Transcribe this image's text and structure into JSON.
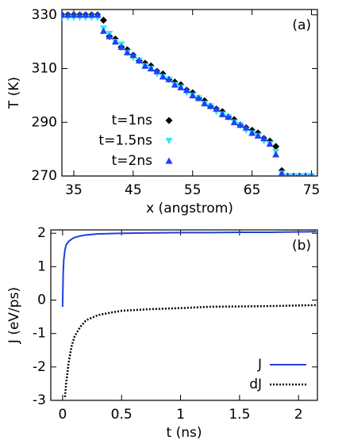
{
  "chart_data": [
    {
      "type": "scatter",
      "annotation": "(a)",
      "xlabel": "x (angstrom)",
      "ylabel": "T (K)",
      "x": [
        33,
        34,
        35,
        36,
        37,
        38,
        39,
        40,
        41,
        42,
        43,
        44,
        45,
        46,
        47,
        48,
        49,
        50,
        51,
        52,
        53,
        54,
        55,
        56,
        57,
        58,
        59,
        60,
        61,
        62,
        63,
        64,
        65,
        66,
        67,
        68,
        69,
        70,
        71,
        72,
        73,
        74,
        75
      ],
      "series": [
        {
          "name": "t=1ns",
          "color": "#000000",
          "marker": "diamond",
          "values": [
            330,
            330,
            330,
            330,
            330,
            330,
            330,
            328,
            322,
            321,
            318,
            317,
            315,
            313,
            312,
            311,
            309,
            308,
            306,
            305,
            304,
            302,
            301,
            299,
            298,
            296,
            295,
            294,
            292,
            291,
            289,
            288,
            287,
            286,
            284,
            283,
            281,
            272,
            270,
            270,
            270,
            270,
            270
          ]
        },
        {
          "name": "t=1.5ns",
          "color": "#33e6f0",
          "marker": "triangle-down",
          "values": [
            329,
            329,
            329,
            329,
            329,
            329,
            329,
            325,
            323,
            320,
            319,
            316,
            314,
            313,
            311,
            310,
            308,
            307,
            306,
            304,
            303,
            301,
            300,
            299,
            297,
            296,
            294,
            293,
            292,
            290,
            289,
            287,
            286,
            285,
            283,
            282,
            279,
            271,
            270,
            270,
            270,
            270,
            270
          ]
        },
        {
          "name": "t=2ns",
          "color": "#1f3fff",
          "marker": "triangle-up",
          "values": [
            330,
            330,
            330,
            330,
            330,
            330,
            330,
            324,
            322,
            320,
            318,
            316,
            315,
            313,
            311,
            310,
            309,
            307,
            306,
            304,
            303,
            302,
            300,
            299,
            297,
            296,
            295,
            293,
            292,
            290,
            289,
            288,
            286,
            285,
            284,
            282,
            278,
            271,
            270,
            270,
            270,
            270,
            270
          ]
        }
      ],
      "xlim": [
        33,
        76
      ],
      "ylim": [
        270,
        332
      ],
      "xticks": [
        35,
        45,
        55,
        65,
        75
      ],
      "yticks": [
        270,
        290,
        310,
        330
      ],
      "legend": "lower left"
    },
    {
      "type": "line",
      "annotation": "(b)",
      "xlabel": "t (ns)",
      "ylabel": "J (eV/ps)",
      "x": [
        0,
        0.005,
        0.01,
        0.02,
        0.03,
        0.05,
        0.075,
        0.1,
        0.15,
        0.2,
        0.3,
        0.4,
        0.5,
        0.75,
        1,
        1.25,
        1.5,
        1.75,
        2,
        2.15
      ],
      "series": [
        {
          "name": "J",
          "color": "#1f3fdd",
          "dash": "solid",
          "values": [
            -0.2,
            0.8,
            1.2,
            1.5,
            1.65,
            1.75,
            1.82,
            1.87,
            1.92,
            1.95,
            1.98,
            1.99,
            2.0,
            2.01,
            2.02,
            2.02,
            2.03,
            2.03,
            2.04,
            2.05
          ]
        },
        {
          "name": "dJ",
          "color": "#000000",
          "dash": "dotted",
          "values": [
            null,
            null,
            null,
            -2.9,
            -2.5,
            -1.9,
            -1.4,
            -1.1,
            -0.8,
            -0.6,
            -0.45,
            -0.38,
            -0.32,
            -0.27,
            -0.24,
            -0.2,
            -0.19,
            -0.18,
            -0.16,
            -0.15
          ]
        }
      ],
      "xlim": [
        -0.1,
        2.16
      ],
      "ylim": [
        -3,
        2.1
      ],
      "xticks": [
        0,
        0.5,
        1,
        1.5,
        2
      ],
      "yticks": [
        -3,
        -2,
        -1,
        0,
        1,
        2
      ],
      "legend": "lower right"
    }
  ]
}
